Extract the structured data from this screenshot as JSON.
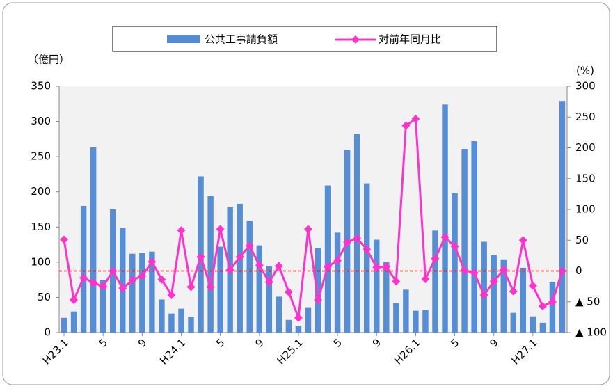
{
  "chart_data": {
    "type": "bar-line",
    "y_label": "（億円）",
    "y2_label": "(%)",
    "categories": [
      "H23.1",
      null,
      null,
      null,
      "5",
      null,
      null,
      null,
      "9",
      null,
      null,
      null,
      "H24.1",
      null,
      null,
      null,
      "5",
      null,
      null,
      null,
      "9",
      null,
      null,
      null,
      "H25.1",
      null,
      null,
      null,
      "5",
      null,
      null,
      null,
      "9",
      null,
      null,
      null,
      "H26.1",
      null,
      null,
      null,
      "5",
      null,
      null,
      null,
      "9",
      null,
      null,
      null,
      "H27.1",
      null,
      null,
      null
    ],
    "series": [
      {
        "name": "公共工事請負額",
        "color": "#558ed5",
        "type": "bar",
        "values": [
          21,
          30,
          180,
          263,
          75,
          175,
          149,
          112,
          113,
          115,
          47,
          27,
          34,
          22,
          222,
          194,
          122,
          178,
          183,
          159,
          124,
          94,
          51,
          18,
          9,
          36,
          120,
          209,
          142,
          260,
          282,
          212,
          132,
          100,
          42,
          61,
          31,
          32,
          145,
          324,
          198,
          261,
          272,
          129,
          110,
          104,
          28,
          92,
          23,
          14,
          72,
          329
        ]
      },
      {
        "name": "対前年同月比",
        "color": "#ff33cc",
        "type": "line",
        "axis": "y2",
        "values": [
          51,
          -47,
          -11,
          -19,
          -25,
          0,
          -28,
          -15,
          -8,
          15,
          -14,
          -39,
          66,
          -26,
          23,
          -26,
          68,
          2,
          23,
          41,
          9,
          -18,
          8,
          -34,
          -76,
          68,
          -47,
          7,
          17,
          47,
          53,
          35,
          6,
          7,
          -17,
          236,
          247,
          -13,
          20,
          55,
          40,
          1,
          -3,
          -39,
          -17,
          2,
          -33,
          50,
          -24,
          -57,
          -50,
          0
        ]
      }
    ],
    "ylim": [
      0,
      350
    ],
    "yticks": [
      0,
      50,
      100,
      150,
      200,
      250,
      300,
      350
    ],
    "y2lim": [
      -100,
      300
    ],
    "y2ticks": [
      {
        "value": -100,
        "label": "▲ 100"
      },
      {
        "value": -50,
        "label": "▲ 50"
      },
      0,
      50,
      100,
      150,
      200,
      250,
      300
    ],
    "reference_line": {
      "axis": "y2",
      "value": 0,
      "color": "#e00000"
    },
    "legend": "top"
  }
}
